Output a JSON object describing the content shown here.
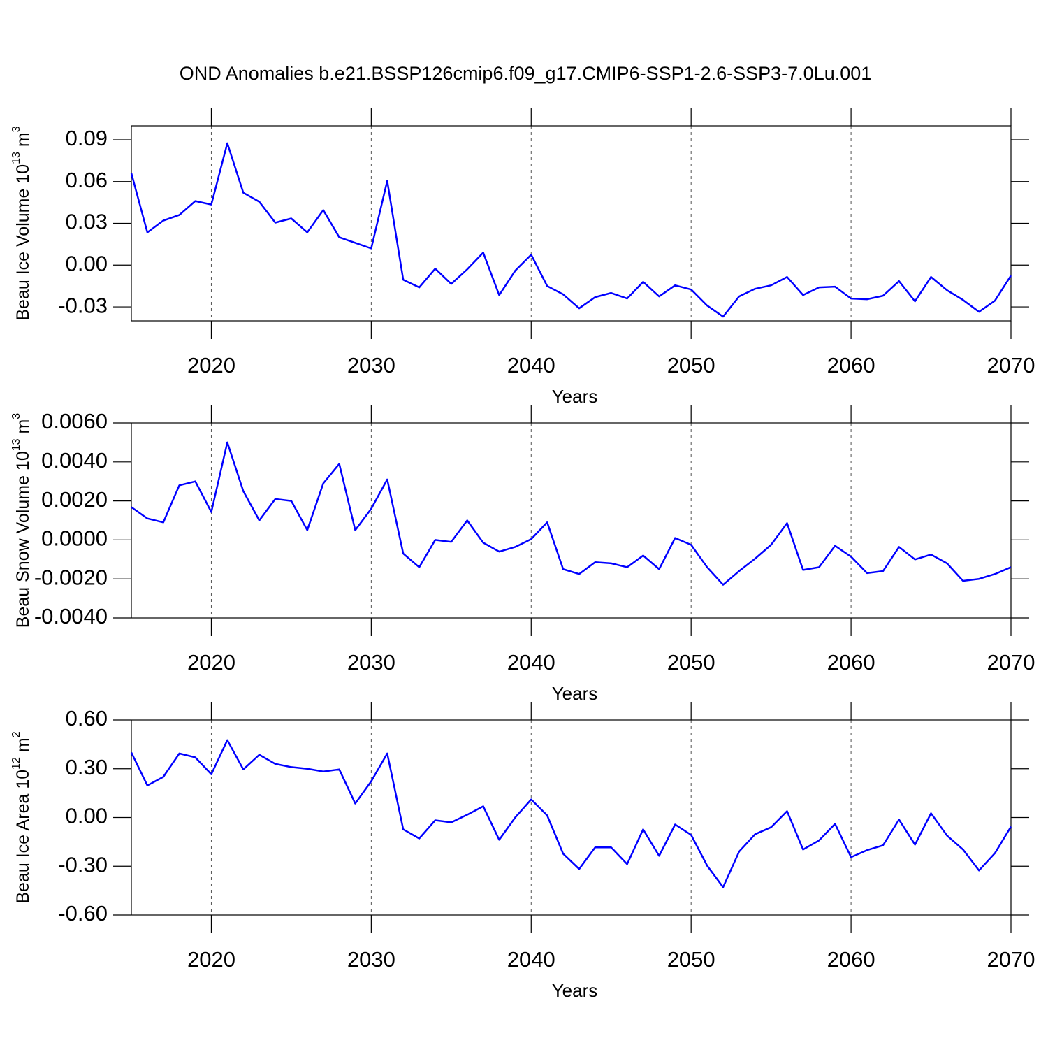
{
  "title": "OND Anomalies b.e21.BSSP126cmip6.f09_g17.CMIP6-SSP1-2.6-SSP3-7.0Lu.001",
  "chart_data": [
    {
      "type": "line",
      "color": "#0000ff",
      "grid": true,
      "y_label": {
        "text": "Beau Ice Volume 10",
        "exponent": "13",
        "unit": " m",
        "unit_power": "3"
      },
      "x_label": "Years",
      "xlim": [
        2015,
        2070
      ],
      "xticks": [
        2020,
        2030,
        2040,
        2050,
        2060,
        2070
      ],
      "ylim": [
        -0.04,
        0.1
      ],
      "yticks": [
        -0.03,
        {
          "value": 0,
          "label": "0.00"
        },
        0.03,
        0.06,
        0.09
      ],
      "x": [
        2015,
        2016,
        2017,
        2018,
        2019,
        2020,
        2021,
        2022,
        2023,
        2024,
        2025,
        2026,
        2027,
        2028,
        2029,
        2030,
        2031,
        2032,
        2033,
        2034,
        2035,
        2036,
        2037,
        2038,
        2039,
        2040,
        2041,
        2042,
        2043,
        2044,
        2045,
        2046,
        2047,
        2048,
        2049,
        2050,
        2051,
        2052,
        2053,
        2054,
        2055,
        2056,
        2057,
        2058,
        2059,
        2060,
        2061,
        2062,
        2063,
        2064,
        2065,
        2066,
        2067,
        2068,
        2069,
        2070
      ],
      "values": [
        0.066,
        0.0235,
        0.032,
        0.036,
        0.046,
        0.0435,
        0.0875,
        0.052,
        0.0455,
        0.0305,
        0.0335,
        0.0235,
        0.0395,
        0.02,
        0.016,
        0.012,
        0.0605,
        -0.0105,
        -0.016,
        -0.0025,
        -0.0135,
        -0.003,
        0.009,
        -0.0215,
        -0.004,
        0.0075,
        -0.015,
        -0.021,
        -0.031,
        -0.023,
        -0.02,
        -0.024,
        -0.012,
        -0.0225,
        -0.0145,
        -0.0175,
        -0.029,
        -0.037,
        -0.0225,
        -0.017,
        -0.0145,
        -0.0085,
        -0.0215,
        -0.016,
        -0.0155,
        -0.024,
        -0.0245,
        -0.022,
        -0.0115,
        -0.026,
        -0.0085,
        -0.018,
        -0.025,
        -0.0335,
        -0.0255,
        -0.0075
      ]
    },
    {
      "type": "line",
      "color": "#0000ff",
      "grid": true,
      "y_label": {
        "text": "Beau Snow Volume 10",
        "exponent": "13",
        "unit": " m",
        "unit_power": "3"
      },
      "x_label": "Years",
      "xlim": [
        2015,
        2070
      ],
      "xticks": [
        2020,
        2030,
        2040,
        2050,
        2060,
        2070
      ],
      "ylim": [
        -0.004,
        0.006
      ],
      "yticks": [
        {
          "value": -0.004,
          "label": "-0.0040"
        },
        {
          "value": -0.002,
          "label": "-0.0020"
        },
        {
          "value": 0,
          "label": "0.0000"
        },
        {
          "value": 0.002,
          "label": "0.0020"
        },
        {
          "value": 0.004,
          "label": "0.0040"
        },
        {
          "value": 0.006,
          "label": "0.0060"
        }
      ],
      "x": [
        2015,
        2016,
        2017,
        2018,
        2019,
        2020,
        2021,
        2022,
        2023,
        2024,
        2025,
        2026,
        2027,
        2028,
        2029,
        2030,
        2031,
        2032,
        2033,
        2034,
        2035,
        2036,
        2037,
        2038,
        2039,
        2040,
        2041,
        2042,
        2043,
        2044,
        2045,
        2046,
        2047,
        2048,
        2049,
        2050,
        2051,
        2052,
        2053,
        2054,
        2055,
        2056,
        2057,
        2058,
        2059,
        2060,
        2061,
        2062,
        2063,
        2064,
        2065,
        2066,
        2067,
        2068,
        2069,
        2070
      ],
      "values": [
        0.00168,
        0.0011,
        0.0009,
        0.0028,
        0.003,
        0.00143,
        0.005,
        0.0025,
        0.001,
        0.0021,
        0.002,
        0.0005,
        0.0029,
        0.0039,
        0.0005,
        0.0016,
        0.0031,
        -0.0007,
        -0.0014,
        0.0,
        -0.0001,
        0.001,
        -0.00014,
        -0.0006,
        -0.00036,
        4e-05,
        0.0009,
        -0.0015,
        -0.00175,
        -0.00114,
        -0.0012,
        -0.0014,
        -0.0008,
        -0.0015,
        0.0001,
        -0.00025,
        -0.0014,
        -0.0023,
        -0.0016,
        -0.00096,
        -0.00025,
        0.00086,
        -0.00154,
        -0.0014,
        -0.0003,
        -0.00086,
        -0.0017,
        -0.0016,
        -0.00036,
        -0.001,
        -0.00075,
        -0.0012,
        -0.0021,
        -0.002,
        -0.00175,
        -0.0014
      ]
    },
    {
      "type": "line",
      "color": "#0000ff",
      "grid": true,
      "y_label": {
        "text": "Beau Ice Area 10",
        "exponent": "12",
        "unit": " m",
        "unit_power": "2"
      },
      "x_label": "Years",
      "xlim": [
        2015,
        2070
      ],
      "xticks": [
        2020,
        2030,
        2040,
        2050,
        2060,
        2070
      ],
      "ylim": [
        -0.6,
        0.6
      ],
      "yticks": [
        {
          "value": -0.6,
          "label": "-0.60"
        },
        {
          "value": -0.3,
          "label": "-0.30"
        },
        {
          "value": 0,
          "label": "0.00"
        },
        {
          "value": 0.3,
          "label": "0.30"
        },
        {
          "value": 0.6,
          "label": "0.60"
        }
      ],
      "x": [
        2015,
        2016,
        2017,
        2018,
        2019,
        2020,
        2021,
        2022,
        2023,
        2024,
        2025,
        2026,
        2027,
        2028,
        2029,
        2030,
        2031,
        2032,
        2033,
        2034,
        2035,
        2036,
        2037,
        2038,
        2039,
        2040,
        2041,
        2042,
        2043,
        2044,
        2045,
        2046,
        2047,
        2048,
        2049,
        2050,
        2051,
        2052,
        2053,
        2054,
        2055,
        2056,
        2057,
        2058,
        2059,
        2060,
        2061,
        2062,
        2063,
        2064,
        2065,
        2066,
        2067,
        2068,
        2069,
        2070
      ],
      "values": [
        0.4,
        0.197,
        0.25,
        0.394,
        0.37,
        0.266,
        0.476,
        0.296,
        0.386,
        0.33,
        0.31,
        0.3,
        0.283,
        0.296,
        0.086,
        0.223,
        0.394,
        -0.073,
        -0.129,
        -0.017,
        -0.03,
        0.017,
        0.069,
        -0.137,
        0,
        0.111,
        0.013,
        -0.223,
        -0.317,
        -0.184,
        -0.184,
        -0.287,
        -0.073,
        -0.236,
        -0.043,
        -0.107,
        -0.296,
        -0.429,
        -0.21,
        -0.103,
        -0.06,
        0.039,
        -0.197,
        -0.141,
        -0.039,
        -0.244,
        -0.201,
        -0.171,
        -0.013,
        -0.167,
        0.026,
        -0.111,
        -0.197,
        -0.326,
        -0.219,
        -0.056
      ]
    }
  ]
}
